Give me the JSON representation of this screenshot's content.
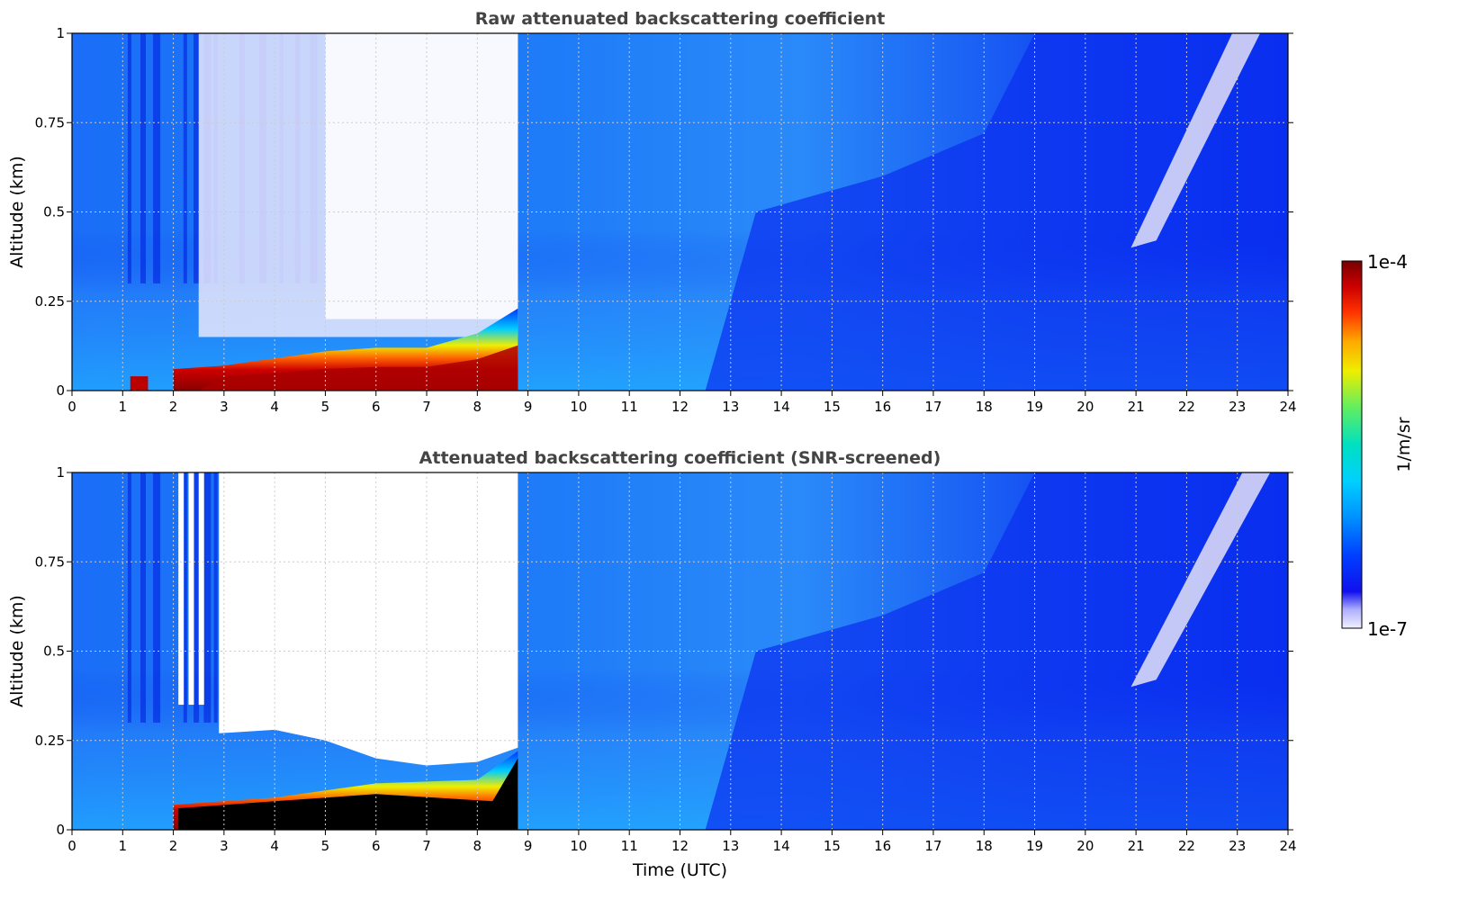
{
  "chart_data": [
    {
      "type": "heatmap",
      "title": "Raw attenuated backscattering coefficient",
      "xlabel": "",
      "ylabel": "Altitude (km)",
      "xlim": [
        0,
        24
      ],
      "ylim": [
        0,
        1
      ],
      "x_ticks": [
        "0",
        "1",
        "2",
        "3",
        "4",
        "5",
        "6",
        "7",
        "8",
        "9",
        "10",
        "11",
        "12",
        "13",
        "14",
        "15",
        "16",
        "17",
        "18",
        "19",
        "20",
        "21",
        "22",
        "23",
        "24"
      ],
      "y_ticks": [
        "0",
        "0.25",
        "0.5",
        "0.75",
        "1"
      ],
      "y_tick_values": [
        0,
        0.25,
        0.5,
        0.75,
        1
      ],
      "grid": true,
      "features": {
        "boundary_layer_top_km": [
          [
            2,
            0.06
          ],
          [
            3,
            0.07
          ],
          [
            4,
            0.09
          ],
          [
            5,
            0.11
          ],
          [
            6,
            0.12
          ],
          [
            7,
            0.12
          ],
          [
            8,
            0.16
          ],
          [
            8.8,
            0.23
          ]
        ],
        "low_signal_region_hours": [
          2.5,
          8.8
        ],
        "descending_layer_start": [
          22.9,
          1.0
        ],
        "descending_layer_end": [
          21.0,
          0.4
        ]
      }
    },
    {
      "type": "heatmap",
      "title": "Attenuated backscattering coefficient (SNR-screened)",
      "xlabel": "Time (UTC)",
      "ylabel": "Altitude (km)",
      "xlim": [
        0,
        24
      ],
      "ylim": [
        0,
        1
      ],
      "x_ticks": [
        "0",
        "1",
        "2",
        "3",
        "4",
        "5",
        "6",
        "7",
        "8",
        "9",
        "10",
        "11",
        "12",
        "13",
        "14",
        "15",
        "16",
        "17",
        "18",
        "19",
        "20",
        "21",
        "22",
        "23",
        "24"
      ],
      "y_ticks": [
        "0",
        "0.25",
        "0.5",
        "0.75",
        "1"
      ],
      "y_tick_values": [
        0,
        0.25,
        0.5,
        0.75,
        1
      ],
      "grid": true,
      "features": {
        "screened_region_hours": [
          2.9,
          8.8
        ],
        "screened_region_bottom_km": [
          [
            2.9,
            0.27
          ],
          [
            4,
            0.28
          ],
          [
            5,
            0.25
          ],
          [
            6,
            0.2
          ],
          [
            7,
            0.18
          ],
          [
            8,
            0.19
          ],
          [
            8.8,
            0.23
          ]
        ],
        "descending_layer_start": [
          23.1,
          1.0
        ],
        "descending_layer_end": [
          21.0,
          0.4
        ]
      }
    }
  ],
  "colorbar": {
    "label": "1/m/sr",
    "max_label": "1e-4",
    "min_label": "1e-7",
    "scale": "log",
    "colormap": [
      "#eeeeff",
      "#aaaaff",
      "#0000ee",
      "#0044ff",
      "#0088ff",
      "#00ccff",
      "#00e8c8",
      "#33ee77",
      "#99ee33",
      "#eeee00",
      "#ffaa00",
      "#ff4400",
      "#dd0000",
      "#990000",
      "#770000"
    ]
  }
}
